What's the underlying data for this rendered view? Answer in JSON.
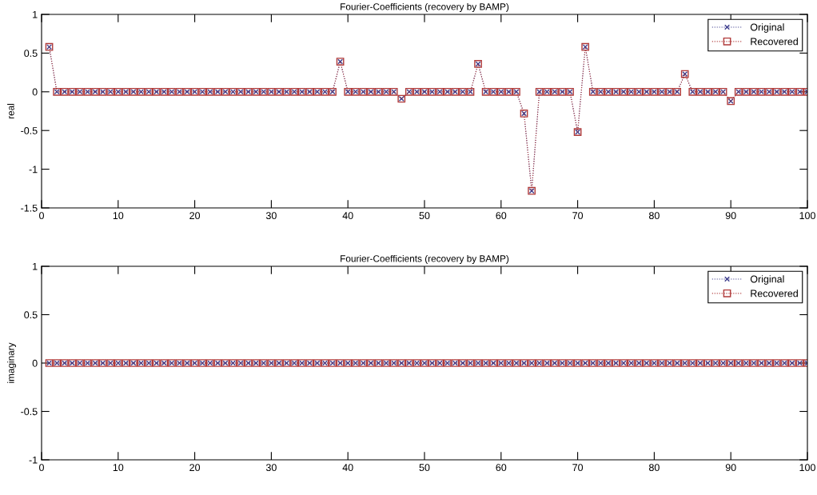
{
  "chart_data": [
    {
      "type": "line",
      "title": "Fourier-Coefficients (recovery by BAMP)",
      "ylabel": "real",
      "x": [
        1,
        2,
        3,
        4,
        5,
        6,
        7,
        8,
        9,
        10,
        11,
        12,
        13,
        14,
        15,
        16,
        17,
        18,
        19,
        20,
        21,
        22,
        23,
        24,
        25,
        26,
        27,
        28,
        29,
        30,
        31,
        32,
        33,
        34,
        35,
        36,
        37,
        38,
        39,
        40,
        41,
        42,
        43,
        44,
        45,
        46,
        47,
        48,
        49,
        50,
        51,
        52,
        53,
        54,
        55,
        56,
        57,
        58,
        59,
        60,
        61,
        62,
        63,
        64,
        65,
        66,
        67,
        68,
        69,
        70,
        71,
        72,
        73,
        74,
        75,
        76,
        77,
        78,
        79,
        80,
        81,
        82,
        83,
        84,
        85,
        86,
        87,
        88,
        89,
        90,
        91,
        92,
        93,
        94,
        95,
        96,
        97,
        98,
        99,
        100
      ],
      "series": [
        {
          "name": "Original",
          "color": "#3c3c8c",
          "marker": "cross",
          "line_style": "dotted",
          "values": [
            0.58,
            0,
            0,
            0,
            0,
            0,
            0,
            0,
            0,
            0,
            0,
            0,
            0,
            0,
            0,
            0,
            0,
            0,
            0,
            0,
            0,
            0,
            0,
            0,
            0,
            0,
            0,
            0,
            0,
            0,
            0,
            0,
            0,
            0,
            0,
            0,
            0,
            0,
            0.39,
            0,
            0,
            0,
            0,
            0,
            0,
            0,
            -0.09,
            0,
            0,
            0,
            0,
            0,
            0,
            0,
            0,
            0,
            0.36,
            0,
            0,
            0,
            0,
            0,
            -0.28,
            -1.28,
            0,
            0,
            0,
            0,
            0,
            -0.52,
            0.58,
            0,
            0,
            0,
            0,
            0,
            0,
            0,
            0,
            0,
            0,
            0,
            0,
            0.23,
            0,
            0,
            0,
            0,
            0,
            -0.12,
            0,
            0,
            0,
            0,
            0,
            0,
            0,
            0,
            0,
            0
          ]
        },
        {
          "name": "Recovered",
          "color": "#b03a3a",
          "marker": "square",
          "line_style": "dotted",
          "values": [
            0.58,
            0,
            0,
            0,
            0,
            0,
            0,
            0,
            0,
            0,
            0,
            0,
            0,
            0,
            0,
            0,
            0,
            0,
            0,
            0,
            0,
            0,
            0,
            0,
            0,
            0,
            0,
            0,
            0,
            0,
            0,
            0,
            0,
            0,
            0,
            0,
            0,
            0,
            0.39,
            0,
            0,
            0,
            0,
            0,
            0,
            0,
            -0.09,
            0,
            0,
            0,
            0,
            0,
            0,
            0,
            0,
            0,
            0.36,
            0,
            0,
            0,
            0,
            0,
            -0.28,
            -1.28,
            0,
            0,
            0,
            0,
            0,
            -0.52,
            0.58,
            0,
            0,
            0,
            0,
            0,
            0,
            0,
            0,
            0,
            0,
            0,
            0,
            0.23,
            0,
            0,
            0,
            0,
            0,
            -0.12,
            0,
            0,
            0,
            0,
            0,
            0,
            0,
            0,
            0,
            0
          ]
        }
      ],
      "xlim": [
        0,
        100
      ],
      "xticks": [
        0,
        10,
        20,
        30,
        40,
        50,
        60,
        70,
        80,
        90,
        100
      ],
      "ylim": [
        -1.5,
        1
      ],
      "yticks": [
        -1.5,
        -1,
        -0.5,
        0,
        0.5,
        1
      ],
      "legend": "top right"
    },
    {
      "type": "line",
      "title": "Fourier-Coefficients (recovery by BAMP)",
      "ylabel": "imaginary",
      "x": [
        1,
        2,
        3,
        4,
        5,
        6,
        7,
        8,
        9,
        10,
        11,
        12,
        13,
        14,
        15,
        16,
        17,
        18,
        19,
        20,
        21,
        22,
        23,
        24,
        25,
        26,
        27,
        28,
        29,
        30,
        31,
        32,
        33,
        34,
        35,
        36,
        37,
        38,
        39,
        40,
        41,
        42,
        43,
        44,
        45,
        46,
        47,
        48,
        49,
        50,
        51,
        52,
        53,
        54,
        55,
        56,
        57,
        58,
        59,
        60,
        61,
        62,
        63,
        64,
        65,
        66,
        67,
        68,
        69,
        70,
        71,
        72,
        73,
        74,
        75,
        76,
        77,
        78,
        79,
        80,
        81,
        82,
        83,
        84,
        85,
        86,
        87,
        88,
        89,
        90,
        91,
        92,
        93,
        94,
        95,
        96,
        97,
        98,
        99,
        100
      ],
      "series": [
        {
          "name": "Original",
          "color": "#3c3c8c",
          "marker": "cross",
          "line_style": "dotted",
          "values": [
            0,
            0,
            0,
            0,
            0,
            0,
            0,
            0,
            0,
            0,
            0,
            0,
            0,
            0,
            0,
            0,
            0,
            0,
            0,
            0,
            0,
            0,
            0,
            0,
            0,
            0,
            0,
            0,
            0,
            0,
            0,
            0,
            0,
            0,
            0,
            0,
            0,
            0,
            0,
            0,
            0,
            0,
            0,
            0,
            0,
            0,
            0,
            0,
            0,
            0,
            0,
            0,
            0,
            0,
            0,
            0,
            0,
            0,
            0,
            0,
            0,
            0,
            0,
            0,
            0,
            0,
            0,
            0,
            0,
            0,
            0,
            0,
            0,
            0,
            0,
            0,
            0,
            0,
            0,
            0,
            0,
            0,
            0,
            0,
            0,
            0,
            0,
            0,
            0,
            0,
            0,
            0,
            0,
            0,
            0,
            0,
            0,
            0,
            0,
            0
          ]
        },
        {
          "name": "Recovered",
          "color": "#b03a3a",
          "marker": "square",
          "line_style": "dotted",
          "values": [
            0,
            0,
            0,
            0,
            0,
            0,
            0,
            0,
            0,
            0,
            0,
            0,
            0,
            0,
            0,
            0,
            0,
            0,
            0,
            0,
            0,
            0,
            0,
            0,
            0,
            0,
            0,
            0,
            0,
            0,
            0,
            0,
            0,
            0,
            0,
            0,
            0,
            0,
            0,
            0,
            0,
            0,
            0,
            0,
            0,
            0,
            0,
            0,
            0,
            0,
            0,
            0,
            0,
            0,
            0,
            0,
            0,
            0,
            0,
            0,
            0,
            0,
            0,
            0,
            0,
            0,
            0,
            0,
            0,
            0,
            0,
            0,
            0,
            0,
            0,
            0,
            0,
            0,
            0,
            0,
            0,
            0,
            0,
            0,
            0,
            0,
            0,
            0,
            0,
            0,
            0,
            0,
            0,
            0,
            0,
            0,
            0,
            0,
            0,
            0
          ]
        }
      ],
      "xlim": [
        0,
        100
      ],
      "xticks": [
        0,
        10,
        20,
        30,
        40,
        50,
        60,
        70,
        80,
        90,
        100
      ],
      "ylim": [
        -1,
        1
      ],
      "yticks": [
        -1,
        -0.5,
        0,
        0.5,
        1
      ],
      "legend": "top right"
    }
  ]
}
